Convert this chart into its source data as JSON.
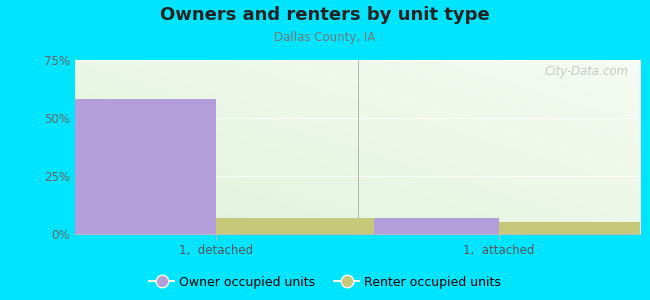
{
  "title": "Owners and renters by unit type",
  "subtitle": "Dallas County, IA",
  "categories": [
    "1,  detached",
    "1,  attached"
  ],
  "owner_values": [
    58,
    7
  ],
  "renter_values": [
    7,
    5
  ],
  "owner_color": "#b39ddb",
  "renter_color": "#c8c87a",
  "ylim": [
    0,
    75
  ],
  "yticks": [
    0,
    25,
    50,
    75
  ],
  "ytick_labels": [
    "0%",
    "25%",
    "50%",
    "75%"
  ],
  "bar_width": 0.28,
  "background_outer": "#00e5ff",
  "legend_owner": "Owner occupied units",
  "legend_renter": "Renter occupied units",
  "watermark": "City-Data.com",
  "x_positions": [
    0.25,
    0.75
  ],
  "xlim": [
    0,
    1
  ]
}
